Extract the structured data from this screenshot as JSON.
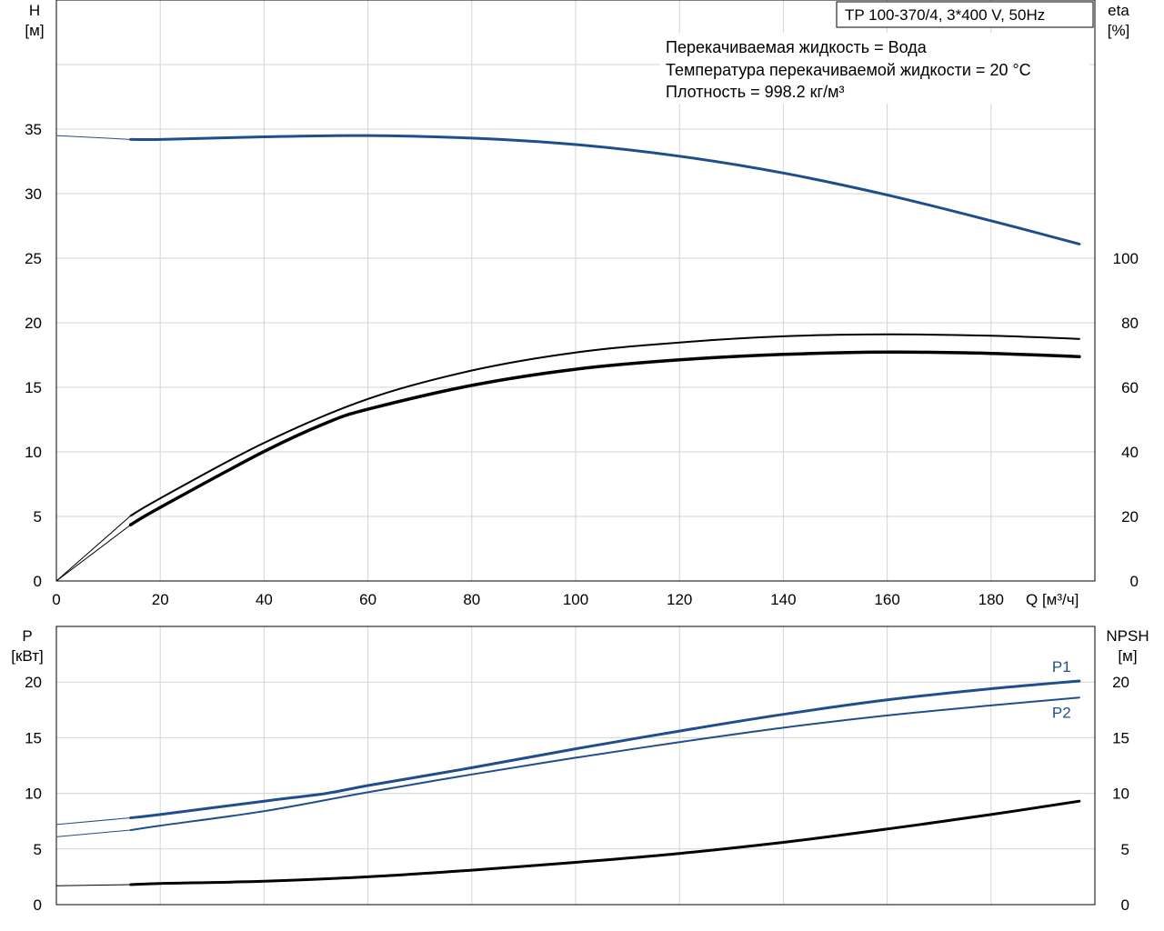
{
  "chart_data": [
    {
      "type": "line",
      "title": "TP 100-370/4, 3*400 V, 50Hz",
      "annotations": [
        "Перекачиваемая жидкость = Вода",
        "Температура перекачиваемой жидкости = 20 °C",
        "Плотность = 998.2 кг/м³"
      ],
      "xlabel": "Q [м³/ч]",
      "ylabel_left": [
        "H",
        "[м]"
      ],
      "ylabel_right": [
        "eta",
        "[%]"
      ],
      "xlim": [
        0,
        200
      ],
      "ylim_left": [
        0,
        45
      ],
      "ylim_right": [
        0,
        180
      ],
      "x_ticks": [
        0,
        20,
        40,
        60,
        80,
        100,
        120,
        140,
        160,
        180
      ],
      "y_left_ticks": [
        0,
        5,
        10,
        15,
        20,
        25,
        30,
        35
      ],
      "y_right_ticks": [
        0,
        20,
        40,
        60,
        80,
        100
      ],
      "grid": true,
      "series": [
        {
          "axis": "left",
          "color": "#1f4e8c",
          "width": 3,
          "x": [
            14.3,
            20,
            40,
            60,
            80,
            100,
            120,
            140,
            160,
            180,
            197
          ],
          "values": [
            34.2,
            34.2,
            34.4,
            34.5,
            34.3,
            33.8,
            32.9,
            31.6,
            29.9,
            27.9,
            26.1
          ]
        },
        {
          "axis": "left",
          "color": "#1f4e8c",
          "width": 1,
          "x": [
            0,
            14.3
          ],
          "values": [
            34.5,
            34.2
          ]
        },
        {
          "axis": "right",
          "color": "#000000",
          "width": 2,
          "x": [
            14.3,
            20,
            40,
            60,
            80,
            100,
            120,
            140,
            160,
            180,
            197
          ],
          "values": [
            20.2,
            25.6,
            42.8,
            56.4,
            65.2,
            70.8,
            73.9,
            75.8,
            76.4,
            76.0,
            75.0
          ]
        },
        {
          "axis": "right",
          "color": "#000000",
          "width": 1,
          "x": [
            0,
            14.3
          ],
          "values": [
            0,
            20.2
          ]
        },
        {
          "axis": "right",
          "color": "#000000",
          "width": 3.5,
          "x": [
            14.3,
            20,
            40,
            52,
            60,
            80,
            100,
            120,
            140,
            160,
            180,
            197
          ],
          "values": [
            17.4,
            22.8,
            40.1,
            49.0,
            53.2,
            60.6,
            65.6,
            68.5,
            70.2,
            70.9,
            70.5,
            69.5
          ]
        },
        {
          "axis": "right",
          "color": "#000000",
          "width": 1,
          "x": [
            0,
            14.3
          ],
          "values": [
            0,
            17.4
          ]
        }
      ]
    },
    {
      "type": "line",
      "xlim": [
        0,
        200
      ],
      "ylabel_left": [
        "P",
        "[кВт]"
      ],
      "ylabel_right": [
        "NPSH",
        "[м]"
      ],
      "ylim_left": [
        0,
        25
      ],
      "ylim_right": [
        0,
        25
      ],
      "y_left_ticks": [
        0,
        5,
        10,
        15,
        20
      ],
      "y_right_ticks": [
        0,
        5,
        10,
        15,
        20
      ],
      "grid": true,
      "series": [
        {
          "name": "P1",
          "axis": "left",
          "color": "#1f4e8c",
          "width": 3,
          "x": [
            14.3,
            20,
            40,
            52,
            60,
            80,
            100,
            120,
            140,
            160,
            180,
            197
          ],
          "values": [
            7.8,
            8.1,
            9.3,
            10.0,
            10.7,
            12.3,
            14.0,
            15.6,
            17.1,
            18.4,
            19.4,
            20.1
          ]
        },
        {
          "axis": "left",
          "color": "#1f4e8c",
          "width": 1,
          "x": [
            0,
            14.3
          ],
          "values": [
            7.2,
            7.8
          ]
        },
        {
          "name": "P2",
          "axis": "left",
          "color": "#1f4e8c",
          "width": 2,
          "x": [
            14.3,
            20,
            40,
            60,
            80,
            100,
            120,
            140,
            160,
            180,
            197
          ],
          "values": [
            6.7,
            7.1,
            8.4,
            10.1,
            11.7,
            13.2,
            14.6,
            15.9,
            17.0,
            17.9,
            18.6
          ]
        },
        {
          "axis": "left",
          "color": "#1f4e8c",
          "width": 1,
          "x": [
            0,
            14.3
          ],
          "values": [
            6.1,
            6.7
          ]
        },
        {
          "axis": "right",
          "color": "#000000",
          "width": 3,
          "x": [
            14.3,
            20,
            40,
            60,
            80,
            100,
            120,
            140,
            160,
            180,
            197
          ],
          "values": [
            1.8,
            1.9,
            2.1,
            2.5,
            3.1,
            3.8,
            4.6,
            5.6,
            6.8,
            8.1,
            9.3
          ]
        },
        {
          "axis": "right",
          "color": "#000000",
          "width": 1,
          "x": [
            0,
            14.3
          ],
          "values": [
            1.7,
            1.8
          ]
        }
      ]
    }
  ]
}
